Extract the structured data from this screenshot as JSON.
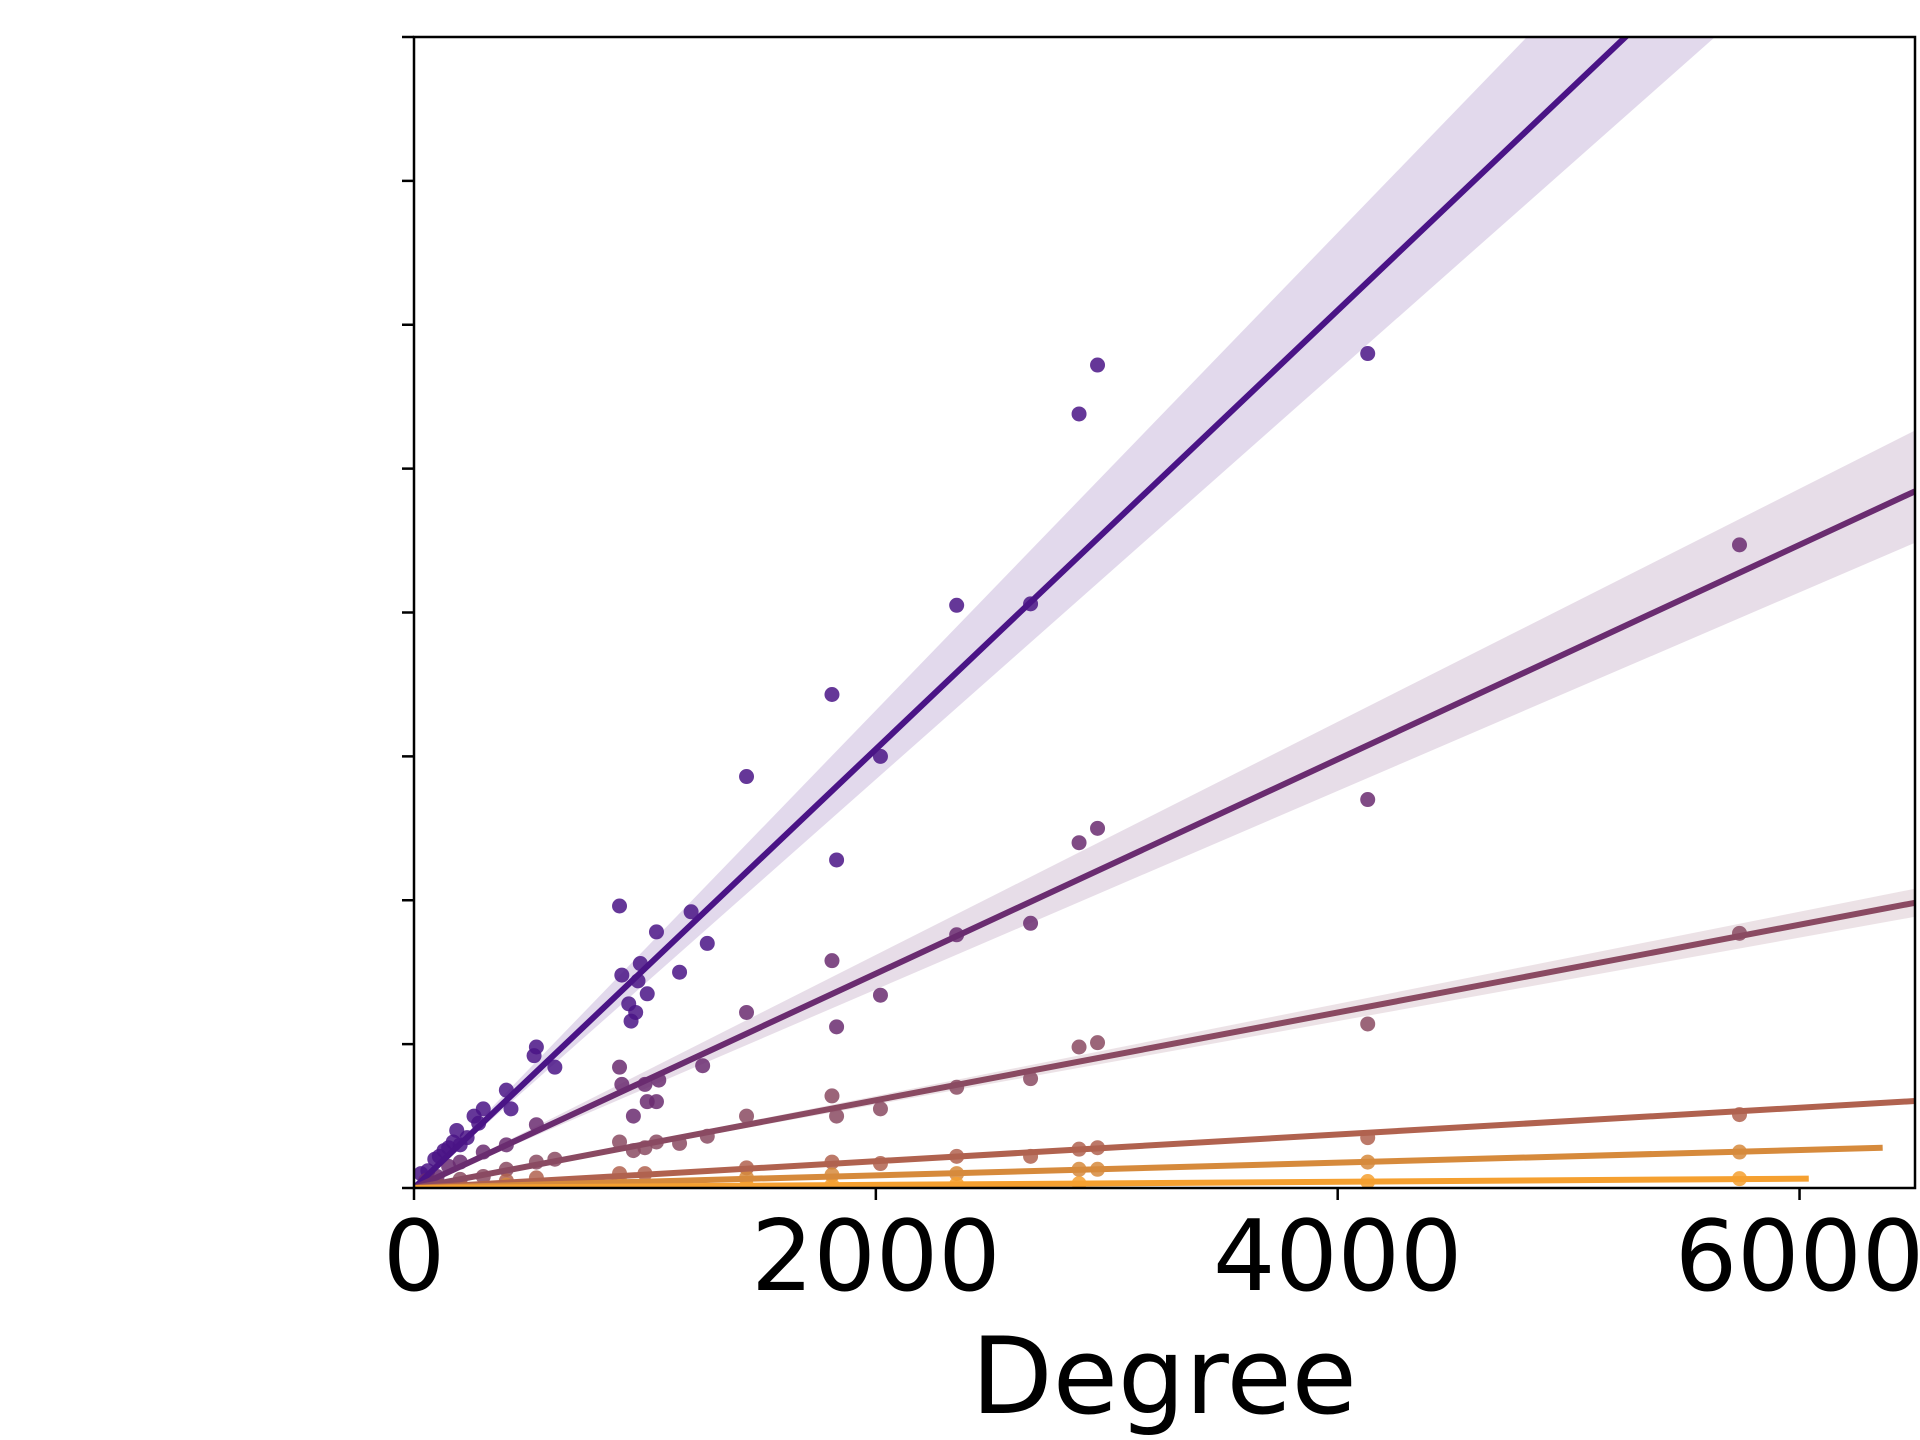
{
  "chart_data": {
    "type": "scatter",
    "title": "",
    "xlabel": "Degree",
    "ylabel": "",
    "xlim": [
      0,
      6500
    ],
    "ylim": [
      0,
      8
    ],
    "x_ticks": [
      0,
      2000,
      4000,
      6000
    ],
    "x_tick_labels": [
      "0",
      "2000",
      "4000",
      "6000"
    ],
    "y_ticks": [
      0,
      1,
      2,
      3,
      4,
      5,
      6,
      7,
      8
    ],
    "grid": false,
    "legend": "none",
    "series": [
      {
        "color": "#4a1486",
        "fit": {
          "slope": 0.001525,
          "x_end": 6500
        },
        "ci_low_slope": 0.00142,
        "ci_high_slope": 0.00166,
        "points": [
          [
            30,
            0.1
          ],
          [
            60,
            0.12
          ],
          [
            90,
            0.2
          ],
          [
            110,
            0.22
          ],
          [
            130,
            0.26
          ],
          [
            150,
            0.28
          ],
          [
            170,
            0.32
          ],
          [
            185,
            0.4
          ],
          [
            200,
            0.3
          ],
          [
            230,
            0.35
          ],
          [
            260,
            0.5
          ],
          [
            280,
            0.45
          ],
          [
            300,
            0.55
          ],
          [
            400,
            0.68
          ],
          [
            420,
            0.55
          ],
          [
            520,
            0.92
          ],
          [
            530,
            0.98
          ],
          [
            610,
            0.84
          ],
          [
            890,
            1.96
          ],
          [
            900,
            1.48
          ],
          [
            930,
            1.28
          ],
          [
            940,
            1.16
          ],
          [
            960,
            1.22
          ],
          [
            970,
            1.44
          ],
          [
            980,
            1.56
          ],
          [
            1010,
            1.35
          ],
          [
            1050,
            1.78
          ],
          [
            1150,
            1.5
          ],
          [
            1200,
            1.92
          ],
          [
            1270,
            1.7
          ],
          [
            1440,
            2.86
          ],
          [
            1810,
            3.43
          ],
          [
            1830,
            2.28
          ],
          [
            2020,
            3.0
          ],
          [
            2350,
            4.05
          ],
          [
            2670,
            4.06
          ],
          [
            2880,
            5.38
          ],
          [
            2960,
            5.72
          ],
          [
            4130,
            5.8
          ]
        ]
      },
      {
        "color": "#6a2c70",
        "fit": {
          "slope": 0.000745,
          "x_end": 6500
        },
        "ci_low_slope": 0.00069,
        "ci_high_slope": 0.00081,
        "points": [
          [
            50,
            0.05
          ],
          [
            100,
            0.08
          ],
          [
            150,
            0.15
          ],
          [
            200,
            0.18
          ],
          [
            300,
            0.25
          ],
          [
            400,
            0.3
          ],
          [
            530,
            0.44
          ],
          [
            890,
            0.84
          ],
          [
            900,
            0.72
          ],
          [
            950,
            0.5
          ],
          [
            1000,
            0.72
          ],
          [
            1010,
            0.6
          ],
          [
            1050,
            0.6
          ],
          [
            1060,
            0.75
          ],
          [
            1250,
            0.85
          ],
          [
            1440,
            1.22
          ],
          [
            1810,
            1.58
          ],
          [
            1830,
            1.12
          ],
          [
            2020,
            1.34
          ],
          [
            2350,
            1.76
          ],
          [
            2670,
            1.84
          ],
          [
            2880,
            2.4
          ],
          [
            2960,
            2.5
          ],
          [
            4130,
            2.7
          ],
          [
            5740,
            4.47
          ]
        ]
      },
      {
        "color": "#8a4a62",
        "fit": {
          "slope": 0.000305,
          "x_end": 6500
        },
        "ci_low_slope": 0.00029,
        "ci_high_slope": 0.00032,
        "points": [
          [
            100,
            0.03
          ],
          [
            200,
            0.06
          ],
          [
            300,
            0.08
          ],
          [
            400,
            0.13
          ],
          [
            530,
            0.18
          ],
          [
            610,
            0.2
          ],
          [
            890,
            0.32
          ],
          [
            950,
            0.26
          ],
          [
            1000,
            0.28
          ],
          [
            1050,
            0.32
          ],
          [
            1150,
            0.31
          ],
          [
            1270,
            0.36
          ],
          [
            1440,
            0.5
          ],
          [
            1810,
            0.64
          ],
          [
            1830,
            0.5
          ],
          [
            2020,
            0.55
          ],
          [
            2350,
            0.7
          ],
          [
            2670,
            0.76
          ],
          [
            2880,
            0.98
          ],
          [
            2960,
            1.01
          ],
          [
            4130,
            1.14
          ],
          [
            5740,
            1.77
          ]
        ]
      },
      {
        "color": "#b0624f",
        "fit": {
          "slope": 9.3e-05,
          "x_end": 6500
        },
        "points": [
          [
            200,
            0.02
          ],
          [
            400,
            0.05
          ],
          [
            530,
            0.07
          ],
          [
            890,
            0.1
          ],
          [
            1000,
            0.1
          ],
          [
            1440,
            0.14
          ],
          [
            1810,
            0.18
          ],
          [
            2020,
            0.17
          ],
          [
            2350,
            0.22
          ],
          [
            2670,
            0.22
          ],
          [
            2880,
            0.27
          ],
          [
            2960,
            0.28
          ],
          [
            4130,
            0.35
          ],
          [
            5740,
            0.51
          ]
        ]
      },
      {
        "color": "#d68a3c",
        "fit": {
          "slope": 4.4e-05,
          "x_end": 6360
        },
        "points": [
          [
            400,
            0.02
          ],
          [
            890,
            0.05
          ],
          [
            1440,
            0.07
          ],
          [
            1810,
            0.09
          ],
          [
            2350,
            0.1
          ],
          [
            2880,
            0.13
          ],
          [
            2960,
            0.13
          ],
          [
            4130,
            0.18
          ],
          [
            5740,
            0.25
          ]
        ]
      },
      {
        "color": "#f5a030",
        "fit": {
          "slope": 1.08e-05,
          "x_end": 6040
        },
        "points": [
          [
            890,
            0.01
          ],
          [
            1440,
            0.015
          ],
          [
            1810,
            0.02
          ],
          [
            2350,
            0.025
          ],
          [
            2880,
            0.03
          ],
          [
            4130,
            0.045
          ],
          [
            5740,
            0.065
          ]
        ]
      }
    ]
  }
}
